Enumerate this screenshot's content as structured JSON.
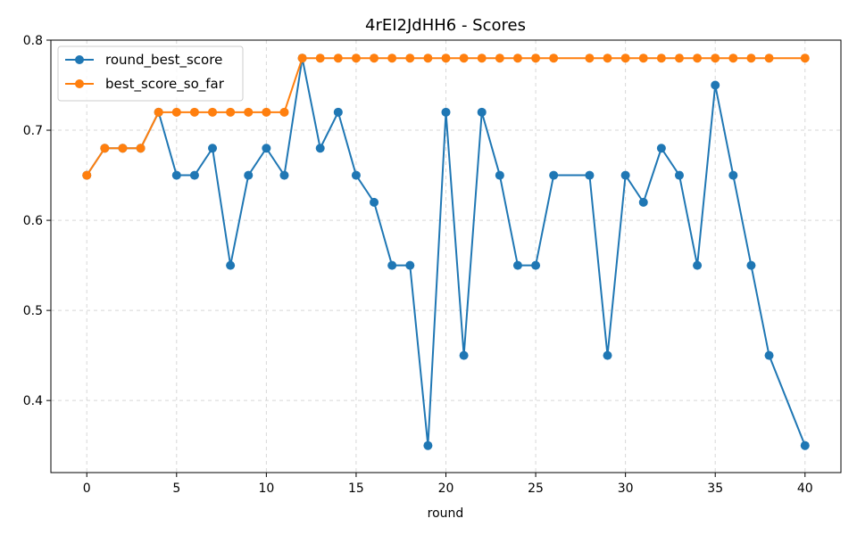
{
  "chart_data": {
    "type": "line",
    "title": "4rEI2JdHH6 - Scores",
    "xlabel": "round",
    "ylabel": "",
    "xlim": [
      -2,
      42
    ],
    "ylim": [
      0.32,
      0.8
    ],
    "xticks": [
      0,
      5,
      10,
      15,
      20,
      25,
      30,
      35,
      40
    ],
    "yticks": [
      0.4,
      0.5,
      0.6,
      0.7,
      0.8
    ],
    "xtick_labels": [
      "0",
      "5",
      "10",
      "15",
      "20",
      "25",
      "30",
      "35",
      "40"
    ],
    "ytick_labels": [
      "0.4",
      "0.5",
      "0.6",
      "0.7",
      "0.8"
    ],
    "grid": true,
    "legend_position": "upper-left",
    "x": [
      0,
      1,
      2,
      3,
      4,
      5,
      6,
      7,
      8,
      9,
      10,
      11,
      12,
      13,
      14,
      15,
      16,
      17,
      18,
      19,
      20,
      21,
      22,
      23,
      24,
      25,
      26,
      28,
      29,
      30,
      31,
      32,
      33,
      34,
      35,
      36,
      37,
      38,
      40
    ],
    "series": [
      {
        "name": "round_best_score",
        "color": "#1f77b4",
        "values": [
          0.65,
          0.68,
          0.68,
          0.68,
          0.72,
          0.65,
          0.65,
          0.68,
          0.55,
          0.65,
          0.68,
          0.65,
          0.78,
          0.68,
          0.72,
          0.65,
          0.62,
          0.55,
          0.55,
          0.35,
          0.72,
          0.45,
          0.72,
          0.65,
          0.55,
          0.55,
          0.65,
          0.65,
          0.45,
          0.65,
          0.62,
          0.68,
          0.65,
          0.55,
          0.75,
          0.65,
          0.55,
          0.45,
          0.35
        ]
      },
      {
        "name": "best_score_so_far",
        "color": "#ff7f0e",
        "values": [
          0.65,
          0.68,
          0.68,
          0.68,
          0.72,
          0.72,
          0.72,
          0.72,
          0.72,
          0.72,
          0.72,
          0.72,
          0.78,
          0.78,
          0.78,
          0.78,
          0.78,
          0.78,
          0.78,
          0.78,
          0.78,
          0.78,
          0.78,
          0.78,
          0.78,
          0.78,
          0.78,
          0.78,
          0.78,
          0.78,
          0.78,
          0.78,
          0.78,
          0.78,
          0.78,
          0.78,
          0.78,
          0.78,
          0.78
        ]
      }
    ]
  }
}
